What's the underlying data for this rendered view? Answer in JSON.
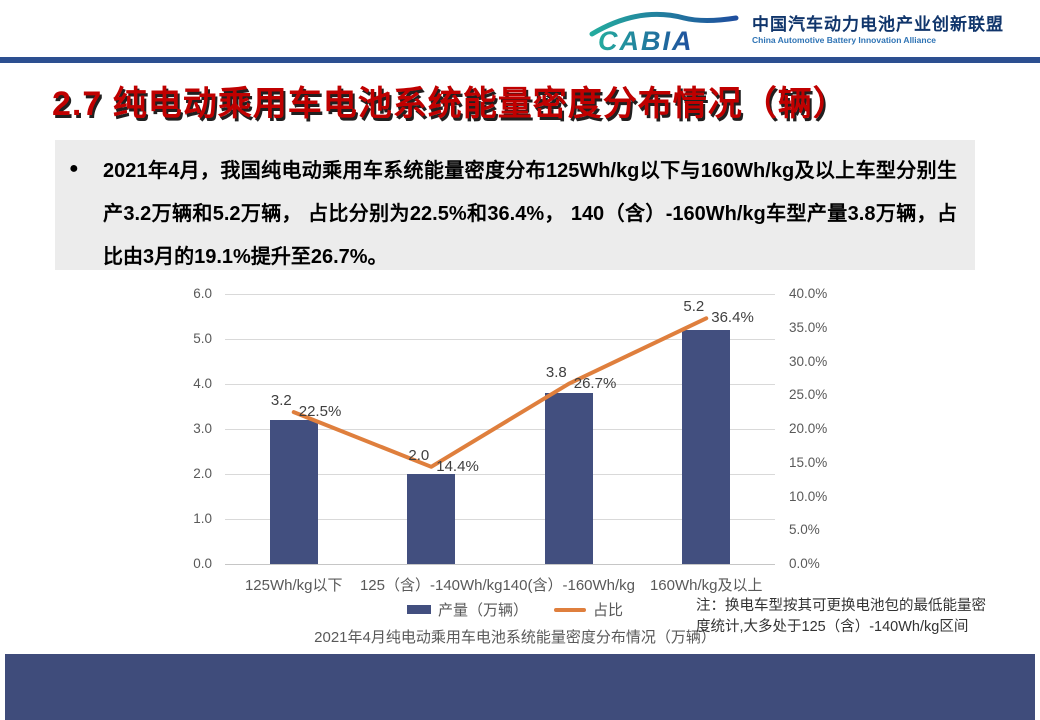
{
  "header": {
    "logo_text": "CABIA",
    "org_cn": "中国汽车动力电池产业创新联盟",
    "org_en": "China Automotive Battery Innovation Alliance"
  },
  "title": "2.7 纯电动乘用车电池系统能量密度分布情况（辆）",
  "summary": {
    "bullet": "●",
    "text": "2021年4月，我国纯电动乘用车系统能量密度分布125Wh/kg以下与160Wh/kg及以上车型分别生产3.2万辆和5.2万辆， 占比分别为22.5%和36.4%， 140（含）-160Wh/kg车型产量3.8万辆，占比由3月的19.1%提升至26.7%。"
  },
  "chart_data": {
    "type": "bar",
    "subtype": "bar+line-dual-axis",
    "categories": [
      "125Wh/kg以下",
      "125（含）-140Wh/kg",
      "140(含）-160Wh/kg",
      "160Wh/kg及以上"
    ],
    "series": [
      {
        "name": "产量（万辆）",
        "type": "bar",
        "axis": "left",
        "values": [
          3.2,
          2.0,
          3.8,
          5.2
        ],
        "labels": [
          "3.2",
          "2.0",
          "3.8",
          "5.2"
        ],
        "color": "#424f7f"
      },
      {
        "name": "占比",
        "type": "line",
        "axis": "right",
        "values": [
          22.5,
          14.4,
          26.7,
          36.4
        ],
        "labels": [
          "22.5%",
          "14.4%",
          "26.7%",
          "36.4%"
        ],
        "color": "#df7f3d"
      }
    ],
    "left_axis": {
      "min": 0,
      "max": 6,
      "ticks": [
        "6.0",
        "5.0",
        "4.0",
        "3.0",
        "2.0",
        "1.0",
        "0.0"
      ]
    },
    "right_axis": {
      "min": 0,
      "max": 40,
      "ticks": [
        "40.0%",
        "35.0%",
        "30.0%",
        "25.0%",
        "20.0%",
        "15.0%",
        "10.0%",
        "5.0%",
        "0.0%"
      ]
    },
    "grid": true,
    "legend_position": "bottom",
    "caption": "2021年4月纯电动乘用车电池系统能量密度分布情况（万辆）"
  },
  "note": "注：换电车型按其可更换电池包的最低能量密度统计,大多处于125（含）-140Wh/kg区间",
  "colors": {
    "title_red": "#c00000",
    "bar_navy": "#424f7f",
    "line_orange": "#df7f3d",
    "footer_navy": "#3f4c7b",
    "header_rule_blue": "#2c4f90",
    "band_gray": "#ececec",
    "logo_teal": "#24ab9e",
    "logo_blue": "#1f4e9e"
  }
}
